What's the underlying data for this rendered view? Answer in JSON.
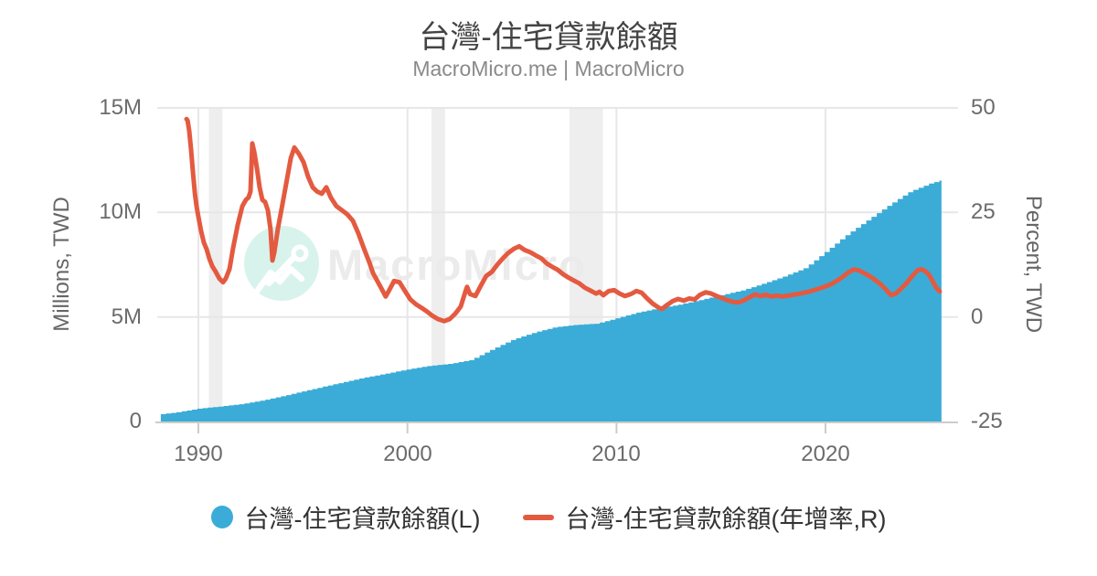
{
  "header": {
    "title": "台灣-住宅貸款餘額",
    "subtitle": "MacroMicro.me | MacroMicro"
  },
  "watermark": {
    "text": "MacroMicro",
    "icon": "macromicro-logo",
    "circle_color": "#D8F3EB",
    "text_color": "#EBEBEB"
  },
  "legend": [
    {
      "label": "台灣-住宅貸款餘額(L)",
      "marker": "circle",
      "color": "#3BACD7"
    },
    {
      "label": "台灣-住宅貸款餘額(年增率,R)",
      "marker": "line",
      "color": "#E45A40"
    }
  ],
  "chart_data": {
    "type": "combo",
    "title": "台灣-住宅貸款餘額",
    "grid": true,
    "colors": {
      "grid": "#E7E7E7",
      "band": "#EEEEEE",
      "axis": "#CCCCCC",
      "bar": "#3BACD7",
      "line": "#E45A40"
    },
    "x_axis": {
      "range": [
        1988.03,
        2026.34
      ],
      "ticks": [
        {
          "v": 1990,
          "label": "1990"
        },
        {
          "v": 2000,
          "label": "2000"
        },
        {
          "v": 2010,
          "label": "2010"
        },
        {
          "v": 2020,
          "label": "2020"
        }
      ]
    },
    "left_axis": {
      "title": "Millions, TWD",
      "range": [
        0,
        15
      ],
      "ticks": [
        {
          "v": 0,
          "label": "0"
        },
        {
          "v": 5,
          "label": "5M"
        },
        {
          "v": 10,
          "label": "10M"
        },
        {
          "v": 15,
          "label": "15M"
        }
      ]
    },
    "right_axis": {
      "title": "Percent, TWD",
      "range": [
        -25,
        50
      ],
      "ticks": [
        {
          "v": -25,
          "label": "-25"
        },
        {
          "v": 0,
          "label": "0"
        },
        {
          "v": 25,
          "label": "25"
        },
        {
          "v": 50,
          "label": "50"
        }
      ]
    },
    "recession_bands": [
      [
        1990.5,
        1991.15
      ],
      [
        2001.15,
        2001.8
      ],
      [
        2007.75,
        2009.35
      ]
    ],
    "series": [
      {
        "name": "台灣-住宅貸款餘額(L)",
        "type": "bar",
        "axis": "left",
        "color": "#3BACD7",
        "step_years": 0.25,
        "points": [
          [
            1988.2,
            0.35
          ],
          [
            1989,
            0.45
          ],
          [
            1990,
            0.62
          ],
          [
            1991,
            0.72
          ],
          [
            1992,
            0.83
          ],
          [
            1993,
            1.0
          ],
          [
            1994,
            1.22
          ],
          [
            1995,
            1.45
          ],
          [
            1996,
            1.68
          ],
          [
            1997,
            1.9
          ],
          [
            1998,
            2.12
          ],
          [
            1999,
            2.3
          ],
          [
            2000,
            2.5
          ],
          [
            2001,
            2.66
          ],
          [
            2002,
            2.76
          ],
          [
            2003,
            2.94
          ],
          [
            2004,
            3.45
          ],
          [
            2005,
            3.92
          ],
          [
            2006,
            4.25
          ],
          [
            2007,
            4.51
          ],
          [
            2008,
            4.62
          ],
          [
            2009,
            4.68
          ],
          [
            2010,
            4.95
          ],
          [
            2011,
            5.22
          ],
          [
            2012,
            5.42
          ],
          [
            2013,
            5.6
          ],
          [
            2014,
            5.82
          ],
          [
            2015,
            6.05
          ],
          [
            2016,
            6.28
          ],
          [
            2017,
            6.6
          ],
          [
            2018,
            6.95
          ],
          [
            2019,
            7.35
          ],
          [
            2020,
            8.15
          ],
          [
            2021,
            8.95
          ],
          [
            2022,
            9.65
          ],
          [
            2023,
            10.35
          ],
          [
            2024,
            11.0
          ],
          [
            2025,
            11.4
          ],
          [
            2025.55,
            11.55
          ]
        ]
      },
      {
        "name": "台灣-住宅貸款餘額(年增率,R)",
        "type": "line",
        "axis": "right",
        "color": "#E45A40",
        "points": [
          [
            1989.43,
            47.3
          ],
          [
            1989.48,
            47.0
          ],
          [
            1989.56,
            44.5
          ],
          [
            1989.65,
            40.0
          ],
          [
            1989.74,
            34.5
          ],
          [
            1989.83,
            29.5
          ],
          [
            1989.91,
            26.5
          ],
          [
            1990.0,
            24.0
          ],
          [
            1990.13,
            20.5
          ],
          [
            1990.26,
            17.8
          ],
          [
            1990.39,
            16.2
          ],
          [
            1990.52,
            14.0
          ],
          [
            1990.66,
            12.2
          ],
          [
            1990.83,
            10.8
          ],
          [
            1991.0,
            9.2
          ],
          [
            1991.18,
            8.3
          ],
          [
            1991.31,
            9.2
          ],
          [
            1991.49,
            11.5
          ],
          [
            1991.66,
            16.5
          ],
          [
            1991.88,
            22.0
          ],
          [
            1992.1,
            26.5
          ],
          [
            1992.27,
            28.0
          ],
          [
            1992.4,
            28.6
          ],
          [
            1992.49,
            30.0
          ],
          [
            1992.58,
            41.5
          ],
          [
            1992.67,
            39.5
          ],
          [
            1992.8,
            35.5
          ],
          [
            1992.93,
            31.0
          ],
          [
            1993.06,
            28.0
          ],
          [
            1993.19,
            27.5
          ],
          [
            1993.32,
            25.5
          ],
          [
            1993.45,
            21.0
          ],
          [
            1993.54,
            13.5
          ],
          [
            1993.63,
            15.5
          ],
          [
            1993.8,
            21.0
          ],
          [
            1994.02,
            27.0
          ],
          [
            1994.24,
            33.0
          ],
          [
            1994.42,
            38.0
          ],
          [
            1994.59,
            40.5
          ],
          [
            1994.81,
            39.0
          ],
          [
            1995.03,
            37.0
          ],
          [
            1995.25,
            33.5
          ],
          [
            1995.47,
            31.0
          ],
          [
            1995.68,
            30.0
          ],
          [
            1995.9,
            29.5
          ],
          [
            1996.12,
            31.0
          ],
          [
            1996.34,
            28.5
          ],
          [
            1996.6,
            26.5
          ],
          [
            1996.87,
            25.5
          ],
          [
            1997.13,
            24.5
          ],
          [
            1997.39,
            23.0
          ],
          [
            1997.65,
            20.0
          ],
          [
            1997.91,
            16.5
          ],
          [
            1998.18,
            13.0
          ],
          [
            1998.35,
            10.5
          ],
          [
            1998.57,
            8.5
          ],
          [
            1998.79,
            6.5
          ],
          [
            1998.96,
            4.9
          ],
          [
            1999.14,
            6.5
          ],
          [
            1999.36,
            8.6
          ],
          [
            1999.62,
            8.3
          ],
          [
            1999.88,
            6.2
          ],
          [
            2000.14,
            4.2
          ],
          [
            2000.41,
            3.0
          ],
          [
            2000.67,
            2.2
          ],
          [
            2000.93,
            1.3
          ],
          [
            2001.19,
            0.3
          ],
          [
            2001.46,
            -0.5
          ],
          [
            2001.76,
            -1.0
          ],
          [
            2002.02,
            -0.5
          ],
          [
            2002.29,
            0.8
          ],
          [
            2002.55,
            2.5
          ],
          [
            2002.77,
            6.0
          ],
          [
            2002.85,
            7.2
          ],
          [
            2002.99,
            5.5
          ],
          [
            2003.25,
            5.0
          ],
          [
            2003.51,
            7.5
          ],
          [
            2003.77,
            9.8
          ],
          [
            2004.04,
            10.8
          ],
          [
            2004.3,
            12.5
          ],
          [
            2004.56,
            14.0
          ],
          [
            2004.82,
            15.3
          ],
          [
            2005.09,
            16.3
          ],
          [
            2005.35,
            16.9
          ],
          [
            2005.61,
            16.0
          ],
          [
            2005.87,
            15.5
          ],
          [
            2006.14,
            14.7
          ],
          [
            2006.4,
            14.0
          ],
          [
            2006.66,
            12.8
          ],
          [
            2006.92,
            12.0
          ],
          [
            2007.18,
            11.3
          ],
          [
            2007.45,
            10.2
          ],
          [
            2007.71,
            9.4
          ],
          [
            2007.97,
            8.7
          ],
          [
            2008.23,
            8.0
          ],
          [
            2008.49,
            7.0
          ],
          [
            2008.76,
            6.3
          ],
          [
            2009.02,
            5.6
          ],
          [
            2009.19,
            6.0
          ],
          [
            2009.37,
            5.2
          ],
          [
            2009.63,
            6.2
          ],
          [
            2009.89,
            6.4
          ],
          [
            2010.15,
            5.6
          ],
          [
            2010.41,
            5.0
          ],
          [
            2010.7,
            5.5
          ],
          [
            2010.95,
            6.2
          ],
          [
            2011.2,
            5.8
          ],
          [
            2011.47,
            4.4
          ],
          [
            2011.73,
            3.2
          ],
          [
            2011.99,
            2.3
          ],
          [
            2012.17,
            1.9
          ],
          [
            2012.43,
            2.9
          ],
          [
            2012.69,
            3.8
          ],
          [
            2012.95,
            4.3
          ],
          [
            2013.22,
            3.9
          ],
          [
            2013.48,
            4.4
          ],
          [
            2013.74,
            4.2
          ],
          [
            2014.0,
            5.3
          ],
          [
            2014.27,
            5.9
          ],
          [
            2014.53,
            5.6
          ],
          [
            2014.79,
            5.0
          ],
          [
            2015.05,
            4.5
          ],
          [
            2015.31,
            4.0
          ],
          [
            2015.58,
            3.6
          ],
          [
            2015.84,
            3.5
          ],
          [
            2016.1,
            4.0
          ],
          [
            2016.36,
            4.7
          ],
          [
            2016.63,
            5.4
          ],
          [
            2016.89,
            5.0
          ],
          [
            2017.15,
            5.3
          ],
          [
            2017.41,
            4.9
          ],
          [
            2017.67,
            5.1
          ],
          [
            2017.94,
            4.9
          ],
          [
            2018.2,
            5.1
          ],
          [
            2018.46,
            5.3
          ],
          [
            2018.72,
            5.5
          ],
          [
            2018.99,
            5.8
          ],
          [
            2019.25,
            6.1
          ],
          [
            2019.51,
            6.5
          ],
          [
            2019.77,
            6.9
          ],
          [
            2020.04,
            7.4
          ],
          [
            2020.3,
            7.9
          ],
          [
            2020.56,
            8.7
          ],
          [
            2020.82,
            9.6
          ],
          [
            2021.08,
            10.6
          ],
          [
            2021.35,
            11.4
          ],
          [
            2021.61,
            11.1
          ],
          [
            2021.87,
            10.4
          ],
          [
            2022.13,
            9.7
          ],
          [
            2022.39,
            8.8
          ],
          [
            2022.66,
            7.7
          ],
          [
            2022.92,
            6.4
          ],
          [
            2023.14,
            5.2
          ],
          [
            2023.36,
            5.6
          ],
          [
            2023.62,
            6.8
          ],
          [
            2023.88,
            8.1
          ],
          [
            2024.15,
            9.8
          ],
          [
            2024.41,
            11.2
          ],
          [
            2024.58,
            11.4
          ],
          [
            2024.76,
            11.0
          ],
          [
            2024.93,
            10.2
          ],
          [
            2025.11,
            8.7
          ],
          [
            2025.28,
            7.1
          ],
          [
            2025.46,
            6.1
          ]
        ]
      }
    ]
  }
}
